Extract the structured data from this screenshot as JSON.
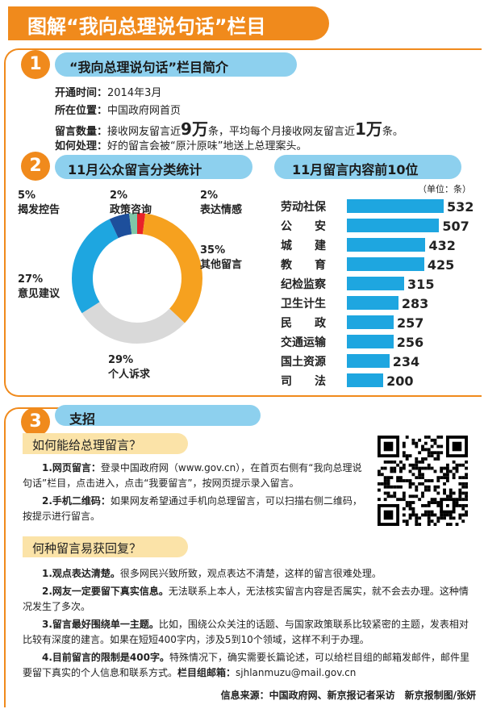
{
  "header": {
    "title": "图解“我向总理说句话”栏目"
  },
  "section1": {
    "num": "1",
    "title": "“我向总理说句话”栏目简介",
    "rows": [
      {
        "label": "开通时间：",
        "text": "2014年3月"
      },
      {
        "label": "所在位置：",
        "text": "中国政府网首页"
      },
      {
        "label": "留言数量：",
        "pre": "接收网友留言近",
        "big1": "9万",
        "mid": "条，平均每个月接收网友留言近",
        "big2": "1万",
        "post": "条。"
      },
      {
        "label": "如何处理：",
        "text": "好的留言会被“原汁原味”地送上总理案头。"
      }
    ]
  },
  "section2": {
    "num": "2",
    "pie_title": "11月公众留言分类统计",
    "bar_title": "11月留言内容前10位",
    "unit": "（单位：条）"
  },
  "chart_data": [
    {
      "type": "pie",
      "title": "11月公众留言分类统计",
      "slices": [
        {
          "label": "表达情感",
          "value": 2,
          "pct": "2%",
          "color": "#e8232a"
        },
        {
          "label": "其他留言",
          "value": 35,
          "pct": "35%",
          "color": "#f6a11f"
        },
        {
          "label": "个人诉求",
          "value": 29,
          "pct": "29%",
          "color": "#d9d9d9"
        },
        {
          "label": "意见建议",
          "value": 27,
          "pct": "27%",
          "color": "#1ea6e0"
        },
        {
          "label": "揭发控告",
          "value": 5,
          "pct": "5%",
          "color": "#1d4f9c"
        },
        {
          "label": "政策咨询",
          "value": 2,
          "pct": "2%",
          "color": "#7fc7a8"
        }
      ]
    },
    {
      "type": "bar",
      "title": "11月留言内容前10位",
      "unit": "（单位：条）",
      "categories": [
        "劳动社保",
        "公　　安",
        "城　　建",
        "教　　育",
        "纪检监察",
        "卫生计生",
        "民　　政",
        "交通运输",
        "国土资源",
        "司　　法"
      ],
      "values": [
        532,
        507,
        432,
        425,
        315,
        283,
        257,
        256,
        234,
        200
      ],
      "xlim": [
        0,
        532
      ]
    }
  ],
  "section3": {
    "num": "3",
    "title": "支招",
    "q1": "如何能给总理留言？",
    "q1_items": [
      {
        "bold": "1.网页留言：",
        "text": "登录中国政府网（www.gov.cn），在首页右侧有“我向总理说句话”栏目，点击进入，点击“我要留言”，按网页提示录入留言。"
      },
      {
        "bold": "2.手机二维码：",
        "text": "如果网友希望通过手机向总理留言，可以扫描右侧二维码，按提示进行留言。"
      }
    ],
    "q2": "何种留言易获回复？",
    "q2_items": [
      {
        "bold": "1.观点表达清楚。",
        "text": "很多网民兴致所致，观点表达不清楚，这样的留言很难处理。"
      },
      {
        "bold": "2.网友一定要留下真实信息。",
        "text": "无法联系上本人，无法核实留言内容是否属实，就不会去办理。这种情况发生了多次。"
      },
      {
        "bold": "3.留言最好围绕单一主题。",
        "text": "比如，围绕公众关注的话题、与国家政策联系比较紧密的主题，发表相对比较有深度的建言。如果在短短400字内，涉及5到10个领域，这样不利于办理。"
      },
      {
        "bold": "4.目前留言的限制是400字。",
        "text": "特殊情况下，确实需要长篇论述，可以给栏目组的邮箱发邮件，邮件里要留下真实的个人信息和联系方式。",
        "bold2": "栏目组邮箱：",
        "text2": "sjhlanmuzu@mail.gov.cn"
      }
    ]
  },
  "footer": {
    "text": "信息来源：中国政府网、新京报记者采访　新京报制图/张妍"
  }
}
